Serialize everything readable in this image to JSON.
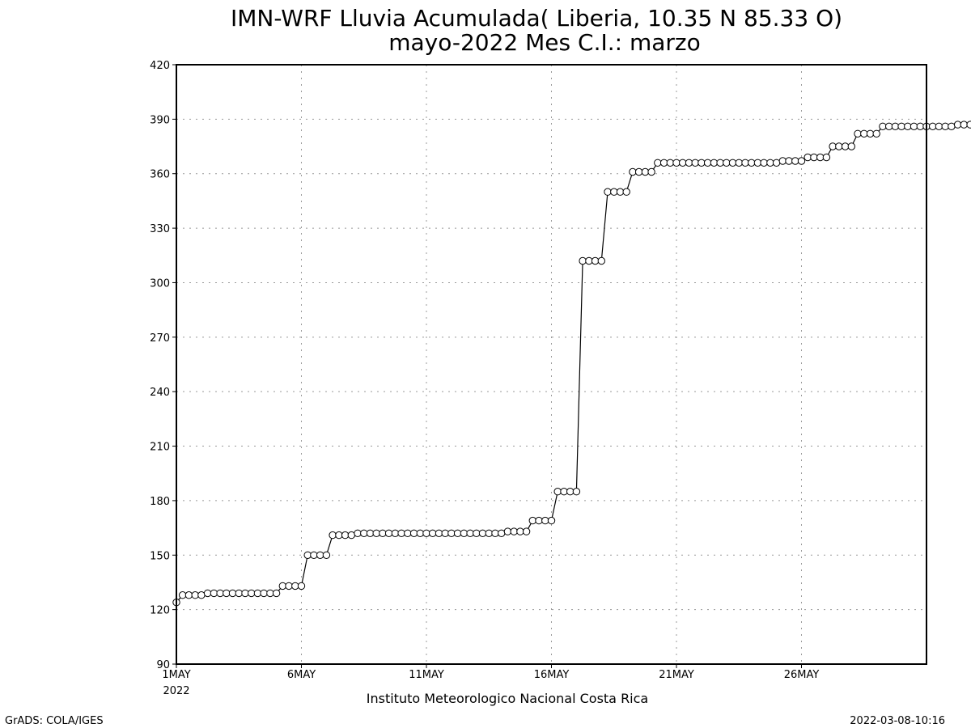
{
  "chart_data": {
    "type": "line",
    "title": "IMN-WRF  Lluvia Acumulada( Liberia, 10.35  N 85.33  O)",
    "subtitle": "mayo-2022 Mes C.I.: marzo",
    "xlabel": "",
    "ylabel": "",
    "x_tick_labels": [
      "1MAY",
      "6MAY",
      "11MAY",
      "16MAY",
      "21MAY",
      "26MAY"
    ],
    "x_tick_days": [
      1,
      6,
      11,
      16,
      21,
      26
    ],
    "x_year_label": "2022",
    "xlim": [
      1,
      31
    ],
    "ylim": [
      90,
      420
    ],
    "y_ticks": [
      90,
      120,
      150,
      180,
      210,
      240,
      270,
      300,
      330,
      360,
      390,
      420
    ],
    "grid": true,
    "marker": "open-circle",
    "series": [
      {
        "name": "",
        "x_start_day": 1,
        "step_days": 0.25,
        "values": [
          124,
          128,
          128,
          128,
          128,
          129,
          129,
          129,
          129,
          129,
          129,
          129,
          129,
          129,
          129,
          129,
          129,
          133,
          133,
          133,
          133,
          150,
          150,
          150,
          150,
          161,
          161,
          161,
          161,
          162,
          162,
          162,
          162,
          162,
          162,
          162,
          162,
          162,
          162,
          162,
          162,
          162,
          162,
          162,
          162,
          162,
          162,
          162,
          162,
          162,
          162,
          162,
          162,
          163,
          163,
          163,
          163,
          169,
          169,
          169,
          169,
          185,
          185,
          185,
          185,
          312,
          312,
          312,
          312,
          350,
          350,
          350,
          350,
          361,
          361,
          361,
          361,
          366,
          366,
          366,
          366,
          366,
          366,
          366,
          366,
          366,
          366,
          366,
          366,
          366,
          366,
          366,
          366,
          366,
          366,
          366,
          366,
          367,
          367,
          367,
          367,
          369,
          369,
          369,
          369,
          375,
          375,
          375,
          375,
          382,
          382,
          382,
          382,
          386,
          386,
          386,
          386,
          386,
          386,
          386,
          386,
          386,
          386,
          386,
          386,
          387,
          387,
          387,
          387
        ]
      }
    ]
  },
  "footer": {
    "institution": "Instituto Meteorologico Nacional Costa Rica",
    "software": "GrADS: COLA/IGES",
    "timestamp": "2022-03-08-10:16"
  }
}
